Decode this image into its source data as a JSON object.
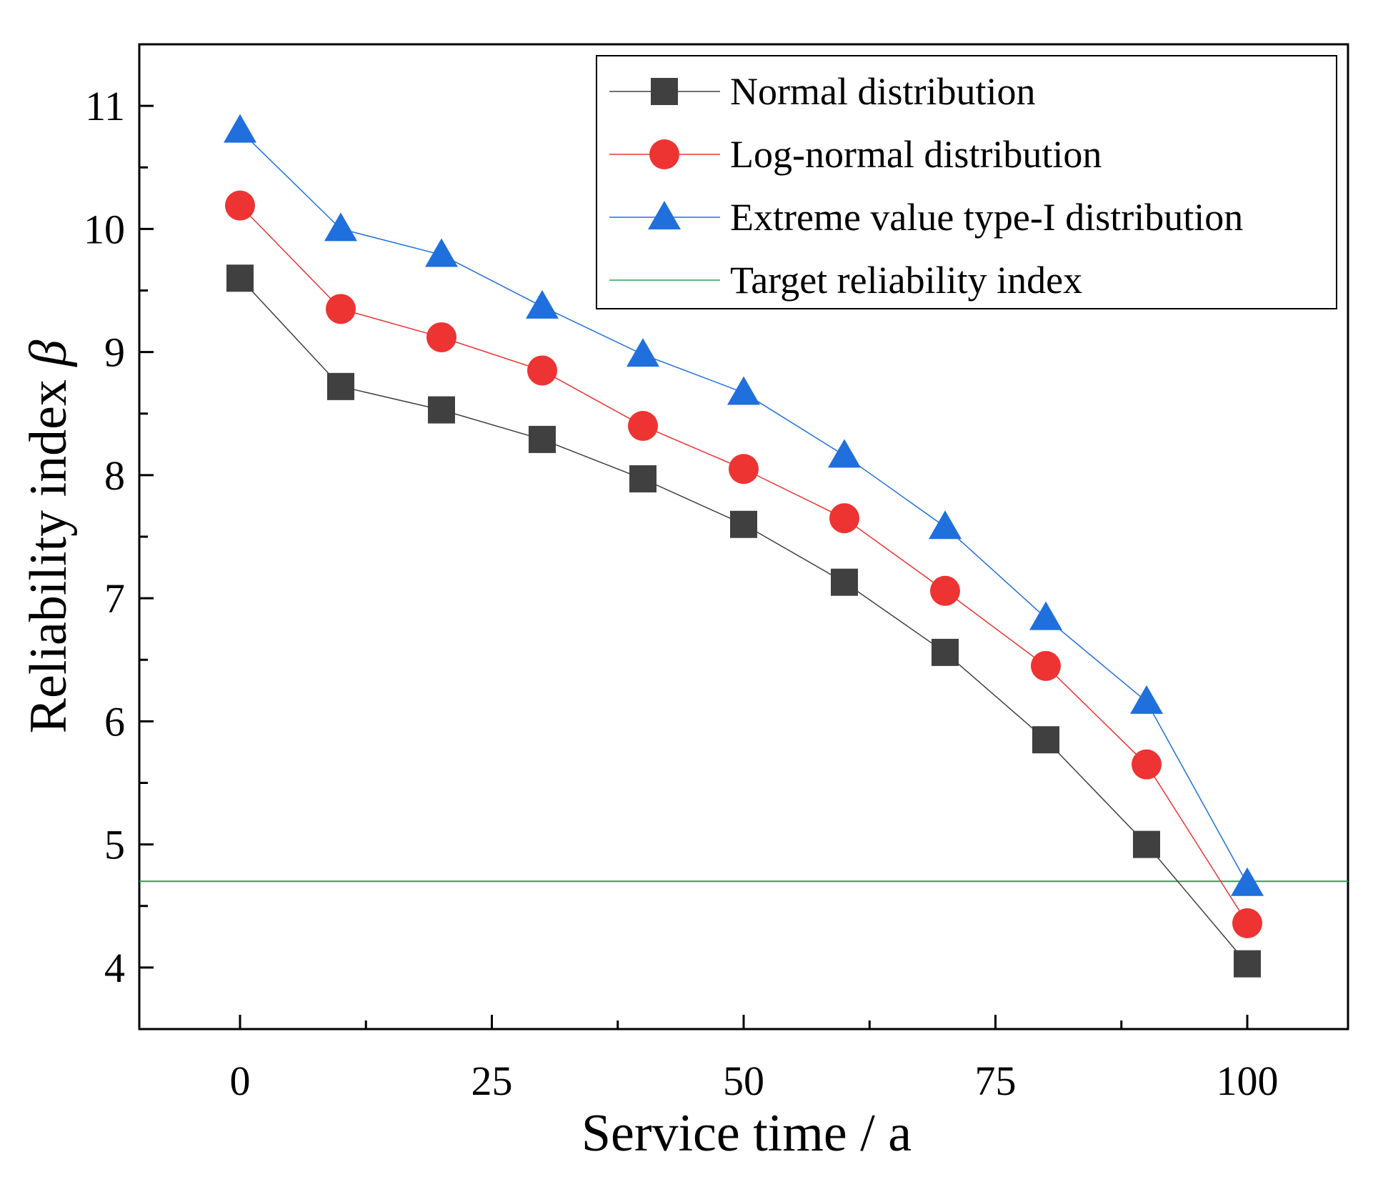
{
  "chart_data": {
    "type": "line",
    "xlabel": "Service time / a",
    "ylabel_text": "Reliability index ",
    "ylabel_symbol": "β",
    "xlim": [
      -10,
      110
    ],
    "ylim": [
      3.5,
      11.5
    ],
    "xticks": [
      0,
      25,
      50,
      75,
      100
    ],
    "xticks_minor": [
      12.5,
      37.5,
      62.5,
      87.5
    ],
    "yticks": [
      4,
      5,
      6,
      7,
      8,
      9,
      10,
      11
    ],
    "yticks_minor": [
      4.5,
      5.5,
      6.5,
      7.5,
      8.5,
      9.5,
      10.5
    ],
    "grid": false,
    "legend_position": "top-right",
    "x": [
      0,
      10,
      20,
      30,
      40,
      50,
      60,
      70,
      80,
      90,
      100
    ],
    "series": [
      {
        "name": "Normal distribution",
        "marker": "square",
        "color": "#404040",
        "values": [
          9.6,
          8.72,
          8.53,
          8.29,
          7.97,
          7.6,
          7.13,
          6.56,
          5.85,
          5.0,
          4.03
        ]
      },
      {
        "name": "Log-normal distribution",
        "marker": "circle",
        "color": "#ee3333",
        "values": [
          10.19,
          9.35,
          9.12,
          8.85,
          8.4,
          8.05,
          7.65,
          7.06,
          6.45,
          5.65,
          4.36
        ]
      },
      {
        "name": "Extreme value type-I distribution",
        "marker": "triangle",
        "color": "#1f6fdd",
        "values": [
          10.8,
          10.0,
          9.79,
          9.37,
          8.98,
          8.67,
          8.16,
          7.58,
          6.84,
          6.16,
          4.68
        ]
      }
    ],
    "reference_line": {
      "name": "Target reliability index",
      "y": 4.7,
      "color": "#2ca05a"
    }
  }
}
